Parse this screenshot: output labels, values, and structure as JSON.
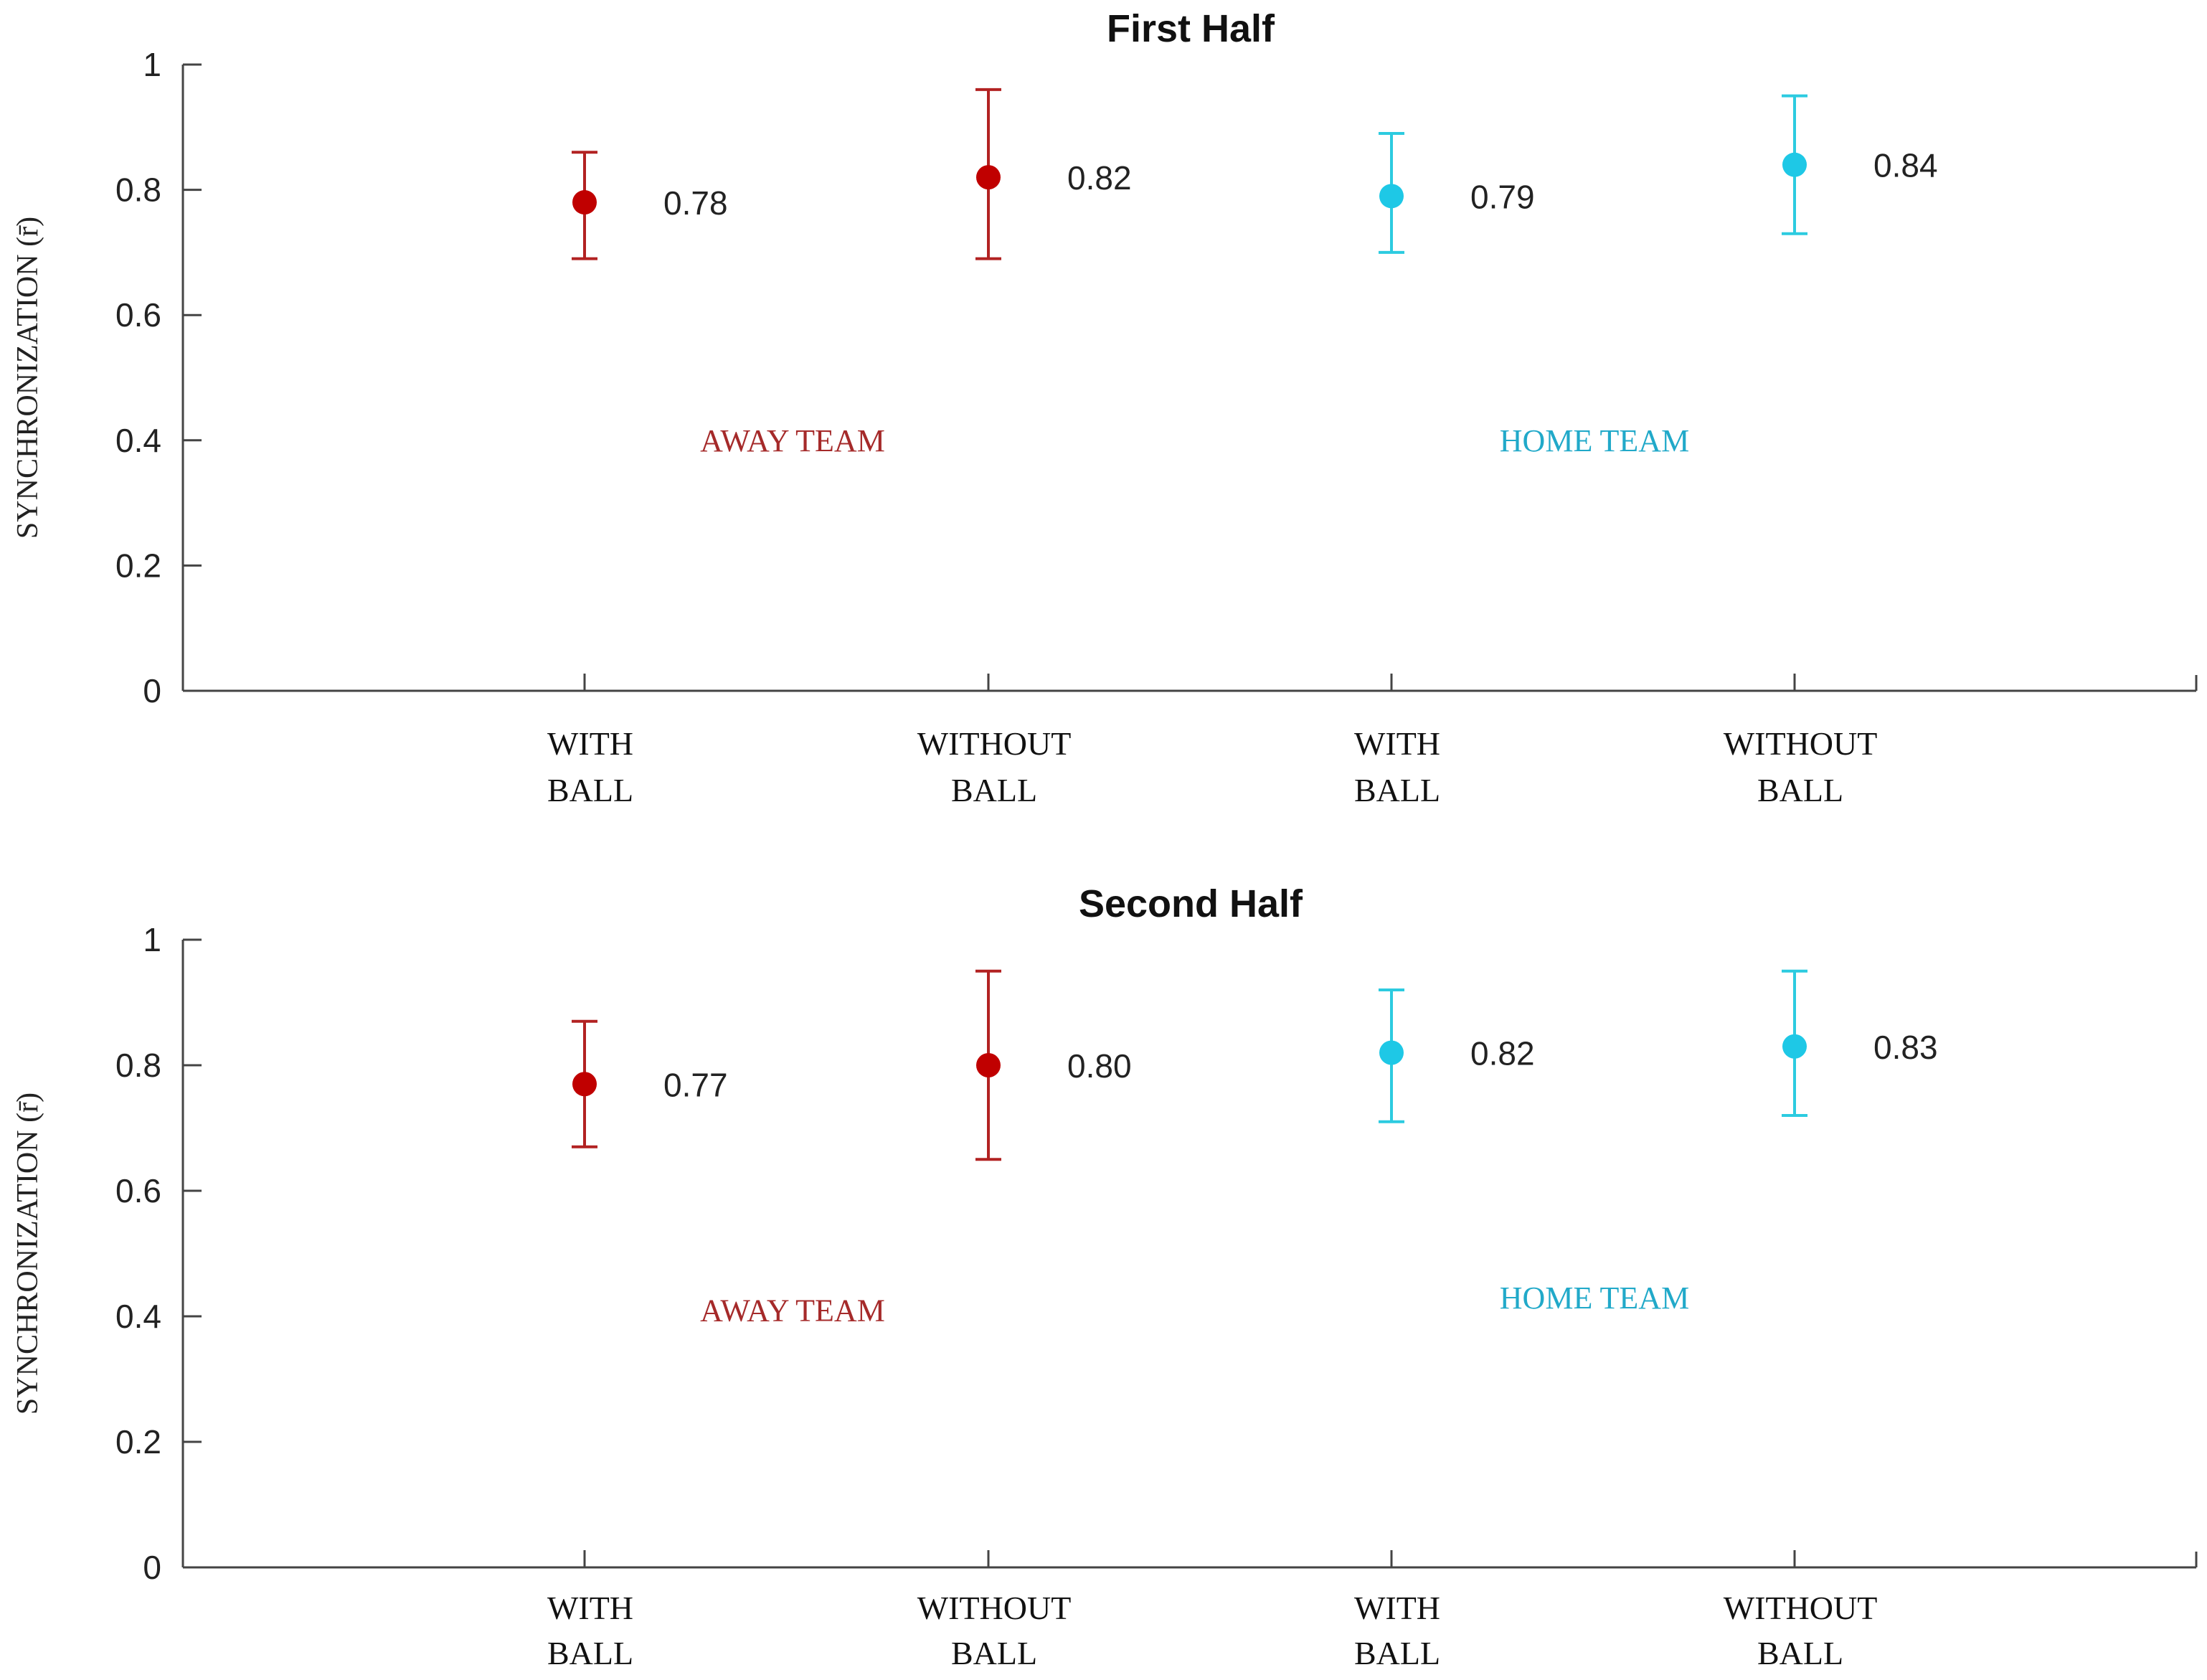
{
  "chart_data": [
    {
      "type": "errorbar",
      "title": "First Half",
      "ylabel": "SYNCHRONIZATION (r̄)",
      "ylim": [
        0,
        1
      ],
      "yticks": [
        "0",
        "0.2",
        "0.4",
        "0.6",
        "0.8",
        "1"
      ],
      "categories": [
        {
          "line1": "WITH",
          "line2": "BALL"
        },
        {
          "line1": "WITHOUT",
          "line2": "BALL"
        },
        {
          "line1": "WITH",
          "line2": "BALL"
        },
        {
          "line1": "WITHOUT",
          "line2": "BALL"
        }
      ],
      "points": [
        {
          "team": "away",
          "value": 0.78,
          "low": 0.69,
          "high": 0.86,
          "label": "0.78"
        },
        {
          "team": "away",
          "value": 0.82,
          "low": 0.69,
          "high": 0.96,
          "label": "0.82"
        },
        {
          "team": "home",
          "value": 0.79,
          "low": 0.7,
          "high": 0.89,
          "label": "0.79"
        },
        {
          "team": "home",
          "value": 0.84,
          "low": 0.73,
          "high": 0.95,
          "label": "0.84"
        }
      ],
      "team_labels": [
        {
          "team": "away",
          "text": "AWAY TEAM",
          "y": 0.4
        },
        {
          "team": "home",
          "text": "HOME TEAM",
          "y": 0.4
        }
      ]
    },
    {
      "type": "errorbar",
      "title": "Second Half",
      "ylabel": "SYNCHRONIZATION (r̄)",
      "ylim": [
        0,
        1
      ],
      "yticks": [
        "0",
        "0.2",
        "0.4",
        "0.6",
        "0.8",
        "1"
      ],
      "categories": [
        {
          "line1": "WITH",
          "line2": "BALL"
        },
        {
          "line1": "WITHOUT",
          "line2": "BALL"
        },
        {
          "line1": "WITH",
          "line2": "BALL"
        },
        {
          "line1": "WITHOUT",
          "line2": "BALL"
        }
      ],
      "points": [
        {
          "team": "away",
          "value": 0.77,
          "low": 0.67,
          "high": 0.87,
          "label": "0.77"
        },
        {
          "team": "away",
          "value": 0.8,
          "low": 0.65,
          "high": 0.95,
          "label": "0.80"
        },
        {
          "team": "home",
          "value": 0.82,
          "low": 0.71,
          "high": 0.92,
          "label": "0.82"
        },
        {
          "team": "home",
          "value": 0.83,
          "low": 0.72,
          "high": 0.95,
          "label": "0.83"
        }
      ],
      "team_labels": [
        {
          "team": "away",
          "text": "AWAY TEAM",
          "y": 0.41
        },
        {
          "team": "home",
          "text": "HOME TEAM",
          "y": 0.43
        }
      ]
    }
  ],
  "colors": {
    "away_marker": "#c00000",
    "away_errorbar": "#b22222",
    "away_text": "#a52a2a",
    "home_marker": "#1ec8e6",
    "home_errorbar": "#2ccbe0",
    "home_text": "#21a9c9",
    "axis": "#444444"
  }
}
